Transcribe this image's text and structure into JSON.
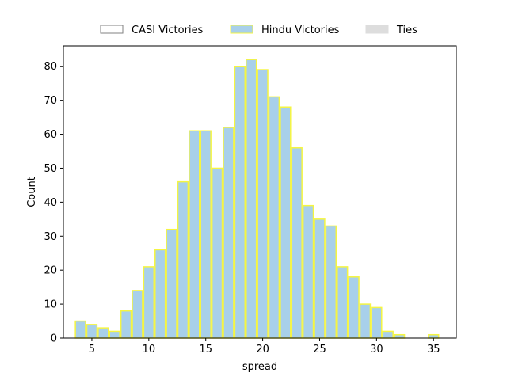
{
  "chart_data": {
    "type": "bar",
    "subtype": "histogram",
    "xlabel": "spread",
    "ylabel": "Count",
    "xlim": [
      2.5,
      37.0
    ],
    "ylim": [
      0,
      86
    ],
    "xticks": [
      5,
      10,
      15,
      20,
      25,
      30,
      35
    ],
    "yticks": [
      0,
      10,
      20,
      30,
      40,
      50,
      60,
      70,
      80
    ],
    "bin_width": 1,
    "series": [
      {
        "name": "CASI Victories",
        "fill": "#ffffff",
        "edge": "#808080",
        "bins": []
      },
      {
        "name": "Hindu Victories",
        "fill": "#a8d0ea",
        "edge": "#f5f542",
        "bins": [
          {
            "x0": 3.5,
            "x1": 4.5,
            "count": 5
          },
          {
            "x0": 4.5,
            "x1": 5.5,
            "count": 4
          },
          {
            "x0": 5.5,
            "x1": 6.5,
            "count": 3
          },
          {
            "x0": 6.5,
            "x1": 7.5,
            "count": 2
          },
          {
            "x0": 7.5,
            "x1": 8.5,
            "count": 8
          },
          {
            "x0": 8.5,
            "x1": 9.5,
            "count": 14
          },
          {
            "x0": 9.5,
            "x1": 10.5,
            "count": 21
          },
          {
            "x0": 10.5,
            "x1": 11.5,
            "count": 26
          },
          {
            "x0": 11.5,
            "x1": 12.5,
            "count": 32
          },
          {
            "x0": 12.5,
            "x1": 13.5,
            "count": 46
          },
          {
            "x0": 13.5,
            "x1": 14.5,
            "count": 61
          },
          {
            "x0": 14.5,
            "x1": 15.5,
            "count": 61
          },
          {
            "x0": 15.5,
            "x1": 16.5,
            "count": 50
          },
          {
            "x0": 16.5,
            "x1": 17.5,
            "count": 62
          },
          {
            "x0": 17.5,
            "x1": 18.5,
            "count": 80
          },
          {
            "x0": 18.5,
            "x1": 19.5,
            "count": 82
          },
          {
            "x0": 19.5,
            "x1": 20.5,
            "count": 79
          },
          {
            "x0": 20.5,
            "x1": 21.5,
            "count": 71
          },
          {
            "x0": 21.5,
            "x1": 22.5,
            "count": 68
          },
          {
            "x0": 22.5,
            "x1": 23.5,
            "count": 56
          },
          {
            "x0": 23.5,
            "x1": 24.5,
            "count": 39
          },
          {
            "x0": 24.5,
            "x1": 25.5,
            "count": 35
          },
          {
            "x0": 25.5,
            "x1": 26.5,
            "count": 33
          },
          {
            "x0": 26.5,
            "x1": 27.5,
            "count": 21
          },
          {
            "x0": 27.5,
            "x1": 28.5,
            "count": 18
          },
          {
            "x0": 28.5,
            "x1": 29.5,
            "count": 10
          },
          {
            "x0": 29.5,
            "x1": 30.5,
            "count": 9
          },
          {
            "x0": 30.5,
            "x1": 31.5,
            "count": 2
          },
          {
            "x0": 31.5,
            "x1": 32.5,
            "count": 1
          },
          {
            "x0": 34.5,
            "x1": 35.5,
            "count": 1
          }
        ]
      },
      {
        "name": "Ties",
        "fill": "#dddddd",
        "edge": "#dddddd",
        "bins": []
      }
    ],
    "legend": {
      "placement": "top-center",
      "entries": [
        "CASI Victories",
        "Hindu Victories",
        "Ties"
      ]
    },
    "grid": false
  }
}
